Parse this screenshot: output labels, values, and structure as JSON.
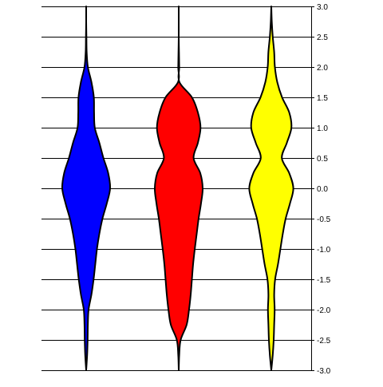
{
  "chart_data": {
    "type": "violin",
    "title": "",
    "xlabel": "",
    "ylabel": "",
    "ylim": [
      -3.0,
      3.0
    ],
    "y_ticks": [
      "3.0",
      "2.5",
      "2.0",
      "1.5",
      "1.0",
      "0.5",
      "0.0",
      "-0.5",
      "-1.0",
      "-1.5",
      "-2.0",
      "-2.5",
      "-3.0"
    ],
    "grid": "horizontal",
    "axis_position": "right",
    "series": [
      {
        "color": "#0000ff",
        "density": [
          [
            -3.0,
            0.0
          ],
          [
            -2.75,
            0.04
          ],
          [
            -2.5,
            0.06
          ],
          [
            -2.25,
            0.07
          ],
          [
            -2.0,
            0.1
          ],
          [
            -1.75,
            0.22
          ],
          [
            -1.5,
            0.31
          ],
          [
            -1.25,
            0.38
          ],
          [
            -1.0,
            0.45
          ],
          [
            -0.75,
            0.55
          ],
          [
            -0.5,
            0.68
          ],
          [
            -0.25,
            0.86
          ],
          [
            0.0,
            1.0
          ],
          [
            0.25,
            0.92
          ],
          [
            0.5,
            0.72
          ],
          [
            0.75,
            0.55
          ],
          [
            1.0,
            0.36
          ],
          [
            1.25,
            0.33
          ],
          [
            1.5,
            0.32
          ],
          [
            1.75,
            0.22
          ],
          [
            2.0,
            0.07
          ],
          [
            2.25,
            0.02
          ],
          [
            2.5,
            0.01
          ],
          [
            2.75,
            0.0
          ],
          [
            3.0,
            0.0
          ]
        ]
      },
      {
        "color": "#ff0000",
        "density": [
          [
            -3.0,
            0.0
          ],
          [
            -2.75,
            0.02
          ],
          [
            -2.5,
            0.08
          ],
          [
            -2.25,
            0.33
          ],
          [
            -2.0,
            0.43
          ],
          [
            -1.75,
            0.5
          ],
          [
            -1.5,
            0.55
          ],
          [
            -1.25,
            0.6
          ],
          [
            -1.0,
            0.67
          ],
          [
            -0.75,
            0.75
          ],
          [
            -0.5,
            0.83
          ],
          [
            -0.25,
            0.93
          ],
          [
            0.0,
            1.0
          ],
          [
            0.25,
            0.9
          ],
          [
            0.5,
            0.62
          ],
          [
            0.75,
            0.8
          ],
          [
            1.0,
            0.91
          ],
          [
            1.25,
            0.8
          ],
          [
            1.5,
            0.55
          ],
          [
            1.75,
            0.03
          ],
          [
            2.0,
            0.02
          ],
          [
            2.25,
            0.01
          ],
          [
            2.5,
            0.0
          ],
          [
            2.75,
            0.0
          ],
          [
            3.0,
            0.0
          ]
        ]
      },
      {
        "color": "#ffff00",
        "density": [
          [
            -3.0,
            0.0
          ],
          [
            -2.75,
            0.06
          ],
          [
            -2.5,
            0.1
          ],
          [
            -2.25,
            0.12
          ],
          [
            -2.0,
            0.14
          ],
          [
            -1.75,
            0.12
          ],
          [
            -1.5,
            0.16
          ],
          [
            -1.25,
            0.28
          ],
          [
            -1.0,
            0.38
          ],
          [
            -0.75,
            0.48
          ],
          [
            -0.5,
            0.6
          ],
          [
            -0.25,
            0.78
          ],
          [
            0.0,
            0.92
          ],
          [
            0.25,
            0.75
          ],
          [
            0.5,
            0.44
          ],
          [
            0.75,
            0.65
          ],
          [
            1.0,
            0.84
          ],
          [
            1.25,
            0.75
          ],
          [
            1.5,
            0.45
          ],
          [
            1.75,
            0.25
          ],
          [
            2.0,
            0.15
          ],
          [
            2.25,
            0.12
          ],
          [
            2.5,
            0.06
          ],
          [
            2.75,
            0.02
          ],
          [
            3.0,
            0.0
          ]
        ]
      }
    ]
  }
}
